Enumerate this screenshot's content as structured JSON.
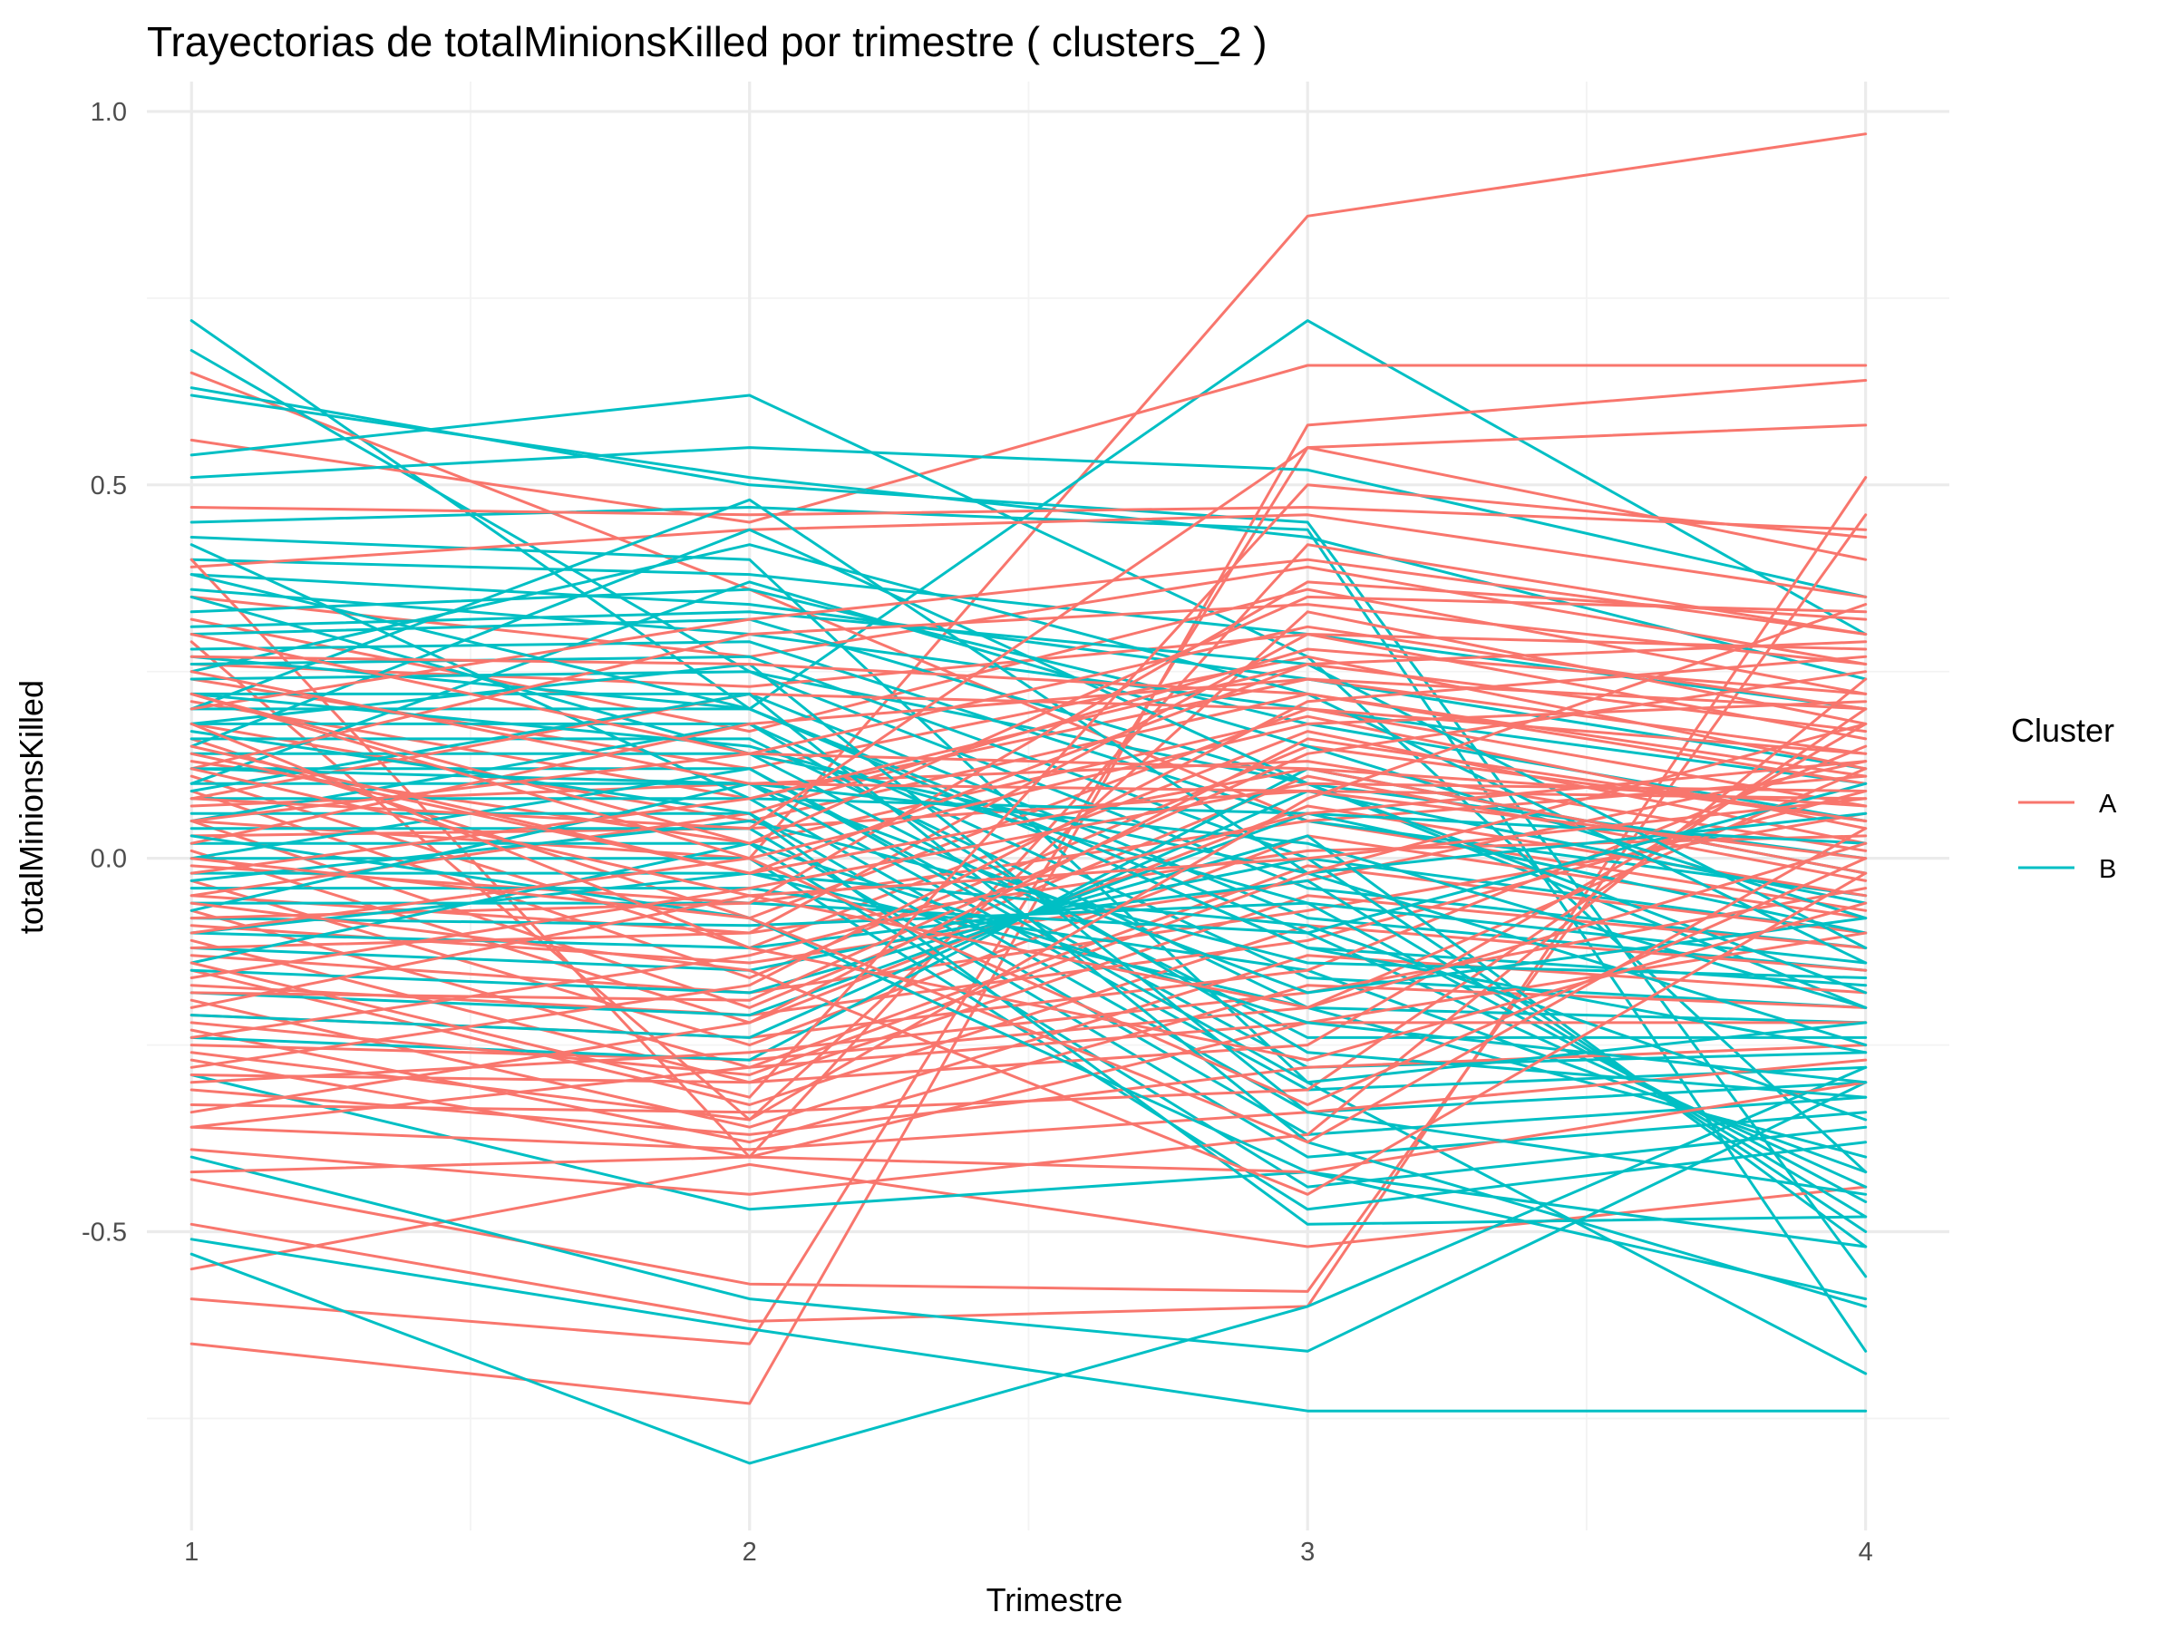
{
  "chart_data": {
    "type": "line",
    "title": "Trayectorias de totalMinionsKilled por trimestre ( clusters_2 )",
    "xlabel": "Trimestre",
    "ylabel": "totalMinionsKilled",
    "x": [
      1,
      2,
      3,
      4
    ],
    "x_tick_labels": [
      "1",
      "2",
      "3",
      "4"
    ],
    "xlim": [
      0.92,
      4.15
    ],
    "ylim": [
      -0.9,
      1.04
    ],
    "y_ticks": [
      1.0,
      0.5,
      0.0,
      -0.5
    ],
    "y_tick_labels": [
      "1.0",
      "0.5",
      "0.0",
      "-0.5"
    ],
    "grid": true,
    "legend": {
      "title": "Cluster",
      "position": "right",
      "entries": [
        {
          "label": "A",
          "color": "#F8766D"
        },
        {
          "label": "B",
          "color": "#00BFC4"
        }
      ]
    },
    "series": [
      {
        "cluster": "A",
        "color": "#F8766D",
        "trajectories": [
          [
            0.05,
            0.0,
            0.86,
            0.97
          ],
          [
            0.65,
            0.36,
            0.05,
            -0.07
          ],
          [
            0.56,
            0.45,
            0.66,
            0.66
          ],
          [
            -0.65,
            -0.73,
            0.58,
            0.64
          ],
          [
            -0.59,
            -0.65,
            0.55,
            0.58
          ],
          [
            -0.55,
            -0.41,
            -0.52,
            -0.44
          ],
          [
            -0.49,
            -0.62,
            -0.6,
            0.51
          ],
          [
            -0.43,
            -0.57,
            -0.58,
            0.46
          ],
          [
            0.47,
            0.46,
            0.47,
            0.44
          ],
          [
            0.39,
            0.44,
            0.46,
            0.35
          ],
          [
            0.4,
            -0.4,
            0.42,
            0.3
          ],
          [
            0.35,
            0.27,
            0.39,
            0.26
          ],
          [
            0.32,
            0.17,
            0.36,
            0.22
          ],
          [
            0.29,
            -0.35,
            0.33,
            0.18
          ],
          [
            0.26,
            0.23,
            0.3,
            0.16
          ],
          [
            0.24,
            0.12,
            0.27,
            0.12
          ],
          [
            0.21,
            0.08,
            0.24,
            0.14
          ],
          [
            0.18,
            0.05,
            0.22,
            0.1
          ],
          [
            0.16,
            -0.08,
            0.2,
            0.07
          ],
          [
            0.13,
            0.02,
            0.19,
            0.04
          ],
          [
            0.11,
            -0.12,
            0.17,
            0.02
          ],
          [
            0.09,
            -0.16,
            0.15,
            0.05
          ],
          [
            0.07,
            0.1,
            0.13,
            0.01
          ],
          [
            0.05,
            -0.2,
            0.11,
            -0.03
          ],
          [
            0.03,
            0.04,
            0.09,
            0.08
          ],
          [
            0.01,
            -0.22,
            0.07,
            -0.05
          ],
          [
            -0.01,
            -0.06,
            0.05,
            0.11
          ],
          [
            -0.03,
            -0.25,
            0.03,
            -0.08
          ],
          [
            -0.05,
            -0.1,
            0.01,
            0.03
          ],
          [
            -0.07,
            -0.28,
            -0.01,
            -0.1
          ],
          [
            -0.09,
            -0.14,
            -0.03,
            0.13
          ],
          [
            -0.11,
            -0.3,
            -0.05,
            -0.12
          ],
          [
            -0.13,
            -0.18,
            -0.07,
            0.06
          ],
          [
            -0.15,
            -0.33,
            -0.09,
            -0.15
          ],
          [
            -0.17,
            -0.21,
            -0.11,
            0.09
          ],
          [
            -0.19,
            -0.36,
            -0.13,
            -0.18
          ],
          [
            -0.21,
            -0.24,
            -0.15,
            0.15
          ],
          [
            -0.23,
            -0.38,
            -0.17,
            -0.2
          ],
          [
            -0.25,
            -0.27,
            -0.2,
            0.12
          ],
          [
            -0.27,
            -0.4,
            -0.22,
            -0.22
          ],
          [
            -0.29,
            -0.3,
            -0.25,
            0.18
          ],
          [
            -0.31,
            -0.37,
            -0.28,
            -0.25
          ],
          [
            -0.33,
            -0.34,
            -0.31,
            0.2
          ],
          [
            -0.36,
            -0.39,
            -0.34,
            -0.27
          ],
          [
            -0.39,
            -0.45,
            -0.37,
            0.24
          ],
          [
            -0.42,
            -0.4,
            -0.42,
            -0.3
          ],
          [
            -0.36,
            -0.28,
            -0.22,
            -0.1
          ],
          [
            -0.3,
            -0.26,
            -0.18,
            -0.04
          ],
          [
            -0.22,
            -0.29,
            -0.02,
            0.18
          ],
          [
            -0.18,
            -0.19,
            0.14,
            0.25
          ],
          [
            -0.12,
            -0.1,
            0.3,
            0.28
          ],
          [
            -0.08,
            -0.06,
            0.37,
            0.32
          ],
          [
            -0.05,
            0.06,
            0.28,
            0.22
          ],
          [
            0.02,
            0.18,
            0.24,
            0.2
          ],
          [
            0.08,
            0.22,
            0.2,
            0.14
          ],
          [
            0.12,
            0.3,
            0.34,
            0.26
          ],
          [
            0.2,
            0.32,
            0.4,
            0.3
          ],
          [
            0.27,
            0.26,
            0.22,
            0.11
          ],
          [
            0.3,
            0.14,
            0.12,
            -0.02
          ],
          [
            0.22,
            0.02,
            0.35,
            0.33
          ],
          [
            0.15,
            -0.02,
            0.26,
            0.29
          ],
          [
            0.05,
            0.14,
            0.31,
            0.2
          ],
          [
            -0.02,
            0.08,
            0.26,
            0.17
          ],
          [
            -0.1,
            0.0,
            0.18,
            0.21
          ],
          [
            -0.16,
            -0.04,
            0.1,
            0.09
          ],
          [
            -0.24,
            -0.13,
            0.06,
            0.13
          ],
          [
            -0.28,
            -0.17,
            0.21,
            0.27
          ],
          [
            -0.34,
            -0.22,
            0.16,
            0.05
          ],
          [
            0.12,
            -0.05,
            -0.2,
            0.02
          ],
          [
            0.18,
            -0.12,
            -0.27,
            -0.06
          ],
          [
            0.22,
            0.0,
            -0.33,
            0.0
          ],
          [
            0.0,
            -0.08,
            -0.38,
            0.04
          ],
          [
            -0.06,
            -0.15,
            -0.45,
            -0.02
          ],
          [
            0.08,
            0.04,
            0.55,
            0.4
          ],
          [
            -0.14,
            -0.32,
            0.5,
            0.43
          ],
          [
            0.25,
            0.1,
            0.09,
            0.0
          ],
          [
            -0.2,
            -0.05,
            0.0,
            0.08
          ],
          [
            0.14,
            -0.02,
            0.12,
            0.07
          ],
          [
            -0.26,
            -0.35,
            0.08,
            0.34
          ]
        ]
      },
      {
        "cluster": "B",
        "color": "#00BFC4",
        "trajectories": [
          [
            0.72,
            0.2,
            0.72,
            0.3
          ],
          [
            0.68,
            0.25,
            0.1,
            -0.2
          ],
          [
            0.63,
            0.5,
            0.45,
            -0.56
          ],
          [
            0.54,
            0.62,
            0.27,
            -0.42
          ],
          [
            0.51,
            0.55,
            0.52,
            0.35
          ],
          [
            0.45,
            0.47,
            0.44,
            -0.66
          ],
          [
            0.43,
            0.4,
            -0.3,
            -0.69
          ],
          [
            0.62,
            0.51,
            0.43,
            0.24
          ],
          [
            0.4,
            0.38,
            0.3,
            0.2
          ],
          [
            0.38,
            0.34,
            0.24,
            0.12
          ],
          [
            0.36,
            0.3,
            0.2,
            0.1
          ],
          [
            -0.51,
            -0.63,
            -0.74,
            -0.74
          ],
          [
            -0.53,
            -0.81,
            -0.6,
            -0.28
          ],
          [
            -0.4,
            -0.59,
            -0.66,
            -0.3
          ],
          [
            -0.29,
            -0.47,
            -0.42,
            -0.59
          ],
          [
            0.33,
            0.36,
            0.18,
            0.05
          ],
          [
            0.3,
            0.32,
            0.1,
            0.0
          ],
          [
            0.28,
            0.29,
            0.05,
            -0.05
          ],
          [
            0.26,
            0.27,
            0.0,
            -0.1
          ],
          [
            0.24,
            0.25,
            -0.04,
            -0.12
          ],
          [
            0.22,
            0.22,
            -0.08,
            -0.15
          ],
          [
            0.2,
            0.2,
            -0.12,
            -0.17
          ],
          [
            0.18,
            0.18,
            -0.16,
            -0.2
          ],
          [
            0.16,
            0.16,
            -0.2,
            -0.22
          ],
          [
            0.14,
            0.14,
            -0.24,
            -0.24
          ],
          [
            0.12,
            0.12,
            -0.28,
            -0.26
          ],
          [
            0.1,
            0.1,
            -0.31,
            -0.28
          ],
          [
            0.08,
            0.08,
            -0.34,
            -0.3
          ],
          [
            0.06,
            0.06,
            -0.37,
            -0.32
          ],
          [
            0.04,
            0.04,
            -0.4,
            -0.34
          ],
          [
            0.02,
            0.02,
            -0.44,
            -0.36
          ],
          [
            0.0,
            0.0,
            -0.47,
            -0.38
          ],
          [
            -0.02,
            -0.02,
            -0.2,
            -0.4
          ],
          [
            -0.04,
            -0.04,
            -0.15,
            -0.42
          ],
          [
            -0.06,
            -0.06,
            -0.1,
            -0.44
          ],
          [
            -0.08,
            -0.09,
            -0.06,
            -0.46
          ],
          [
            -0.1,
            -0.12,
            -0.03,
            -0.48
          ],
          [
            -0.12,
            -0.15,
            0.0,
            -0.5
          ],
          [
            -0.15,
            -0.18,
            0.03,
            -0.52
          ],
          [
            -0.18,
            -0.21,
            0.06,
            -0.1
          ],
          [
            -0.21,
            -0.24,
            0.09,
            -0.06
          ],
          [
            -0.24,
            -0.27,
            0.12,
            -0.02
          ],
          [
            0.42,
            0.08,
            0.06,
            0.02
          ],
          [
            0.35,
            0.14,
            -0.02,
            0.06
          ],
          [
            0.27,
            0.2,
            -0.1,
            0.1
          ],
          [
            0.2,
            0.48,
            -0.02,
            -0.25
          ],
          [
            0.15,
            0.44,
            0.1,
            -0.18
          ],
          [
            0.1,
            0.37,
            0.15,
            -0.08
          ],
          [
            0.25,
            0.42,
            0.22,
            -0.14
          ],
          [
            0.31,
            0.33,
            0.26,
            -0.12
          ],
          [
            0.05,
            0.18,
            -0.26,
            -0.32
          ],
          [
            0.0,
            0.12,
            -0.3,
            -0.22
          ],
          [
            -0.03,
            0.05,
            -0.14,
            -0.16
          ],
          [
            0.18,
            0.26,
            -0.34,
            -0.45
          ],
          [
            0.09,
            0.22,
            -0.38,
            -0.6
          ],
          [
            0.12,
            0.1,
            -0.18,
            -0.08
          ],
          [
            0.22,
            0.15,
            -0.06,
            -0.14
          ],
          [
            -0.14,
            0.02,
            -0.22,
            -0.3
          ],
          [
            0.38,
            0.2,
            -0.12,
            -0.26
          ],
          [
            0.03,
            -0.08,
            -0.42,
            -0.52
          ],
          [
            0.17,
            0.06,
            -0.49,
            -0.48
          ],
          [
            -0.07,
            0.1,
            0.02,
            -0.2
          ],
          [
            -0.1,
            -0.02,
            -0.09,
            -0.35
          ]
        ]
      }
    ]
  }
}
